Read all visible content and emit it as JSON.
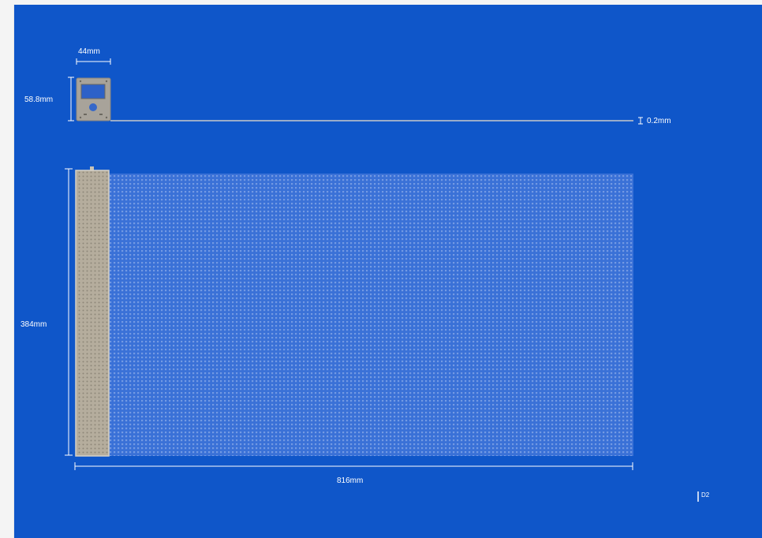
{
  "diagram": {
    "dimensions": {
      "width_small": "44mm",
      "height_small": "58.8mm",
      "thickness": "0.2mm",
      "height_large": "384mm",
      "width_large": "816mm"
    },
    "tag": "D2"
  },
  "colors": {
    "background": "#0f56c9",
    "page": "#f4f4f4",
    "dimension_line": "#ffffff",
    "controller_body": "#a8a39a",
    "controller_screen": "#2d61c8",
    "strip_body": "#b5ad9d",
    "led_grid": "#6b92df"
  }
}
